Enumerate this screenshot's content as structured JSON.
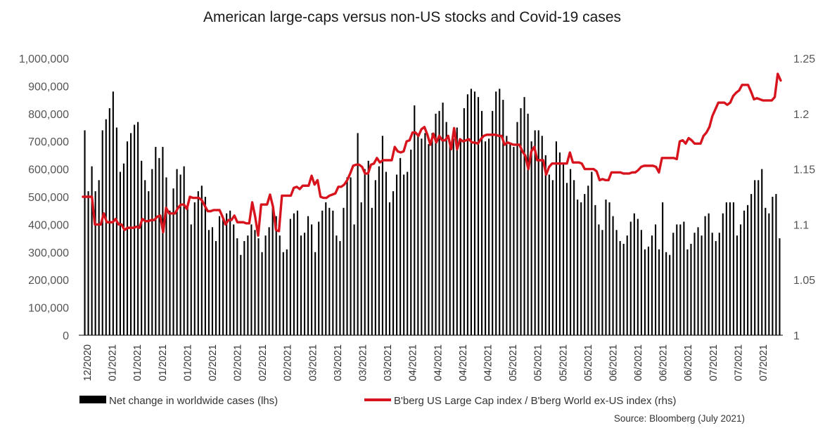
{
  "chart_data": {
    "type": "bar+line",
    "title": "American large-caps versus non-US stocks and Covid-19 cases",
    "source": "Source: Bloomberg (July 2021)",
    "y_left": {
      "min": 0,
      "max": 1000000,
      "ticks": [
        "0",
        "100,000",
        "200,000",
        "300,000",
        "400,000",
        "500,000",
        "600,000",
        "700,000",
        "800,000",
        "900,000",
        "1,000,000"
      ]
    },
    "y_right": {
      "min": 1.0,
      "max": 1.25,
      "ticks": [
        "1",
        "1.05",
        "1.1",
        "1.15",
        "1.2",
        "1.25"
      ]
    },
    "x_tick_labels": [
      "12/2020",
      "01/2021",
      "01/2021",
      "01/2021",
      "01/2021",
      "02/2021",
      "02/2021",
      "02/2021",
      "02/2021",
      "03/2021",
      "03/2021",
      "03/2021",
      "03/2021",
      "04/2021",
      "04/2021",
      "04/2021",
      "04/2021",
      "05/2021",
      "05/2021",
      "05/2021",
      "05/2021",
      "06/2021",
      "06/2021",
      "06/2021",
      "06/2021",
      "07/2021",
      "07/2021",
      "07/2021"
    ],
    "series": [
      {
        "name": "Net change in worldwide cases (lhs)",
        "type": "bar",
        "axis": "left",
        "color": "#000000",
        "values": [
          740000,
          520000,
          610000,
          520000,
          560000,
          740000,
          780000,
          820000,
          880000,
          750000,
          590000,
          620000,
          700000,
          730000,
          760000,
          770000,
          630000,
          560000,
          520000,
          600000,
          680000,
          640000,
          680000,
          570000,
          450000,
          530000,
          600000,
          580000,
          610000,
          460000,
          400000,
          480000,
          520000,
          540000,
          500000,
          380000,
          390000,
          340000,
          430000,
          420000,
          440000,
          450000,
          400000,
          350000,
          290000,
          340000,
          360000,
          400000,
          380000,
          350000,
          300000,
          360000,
          390000,
          460000,
          430000,
          360000,
          300000,
          310000,
          420000,
          440000,
          450000,
          360000,
          370000,
          430000,
          400000,
          300000,
          410000,
          450000,
          480000,
          460000,
          450000,
          360000,
          340000,
          460000,
          570000,
          570000,
          400000,
          730000,
          480000,
          600000,
          630000,
          460000,
          560000,
          610000,
          720000,
          590000,
          480000,
          520000,
          580000,
          640000,
          580000,
          590000,
          670000,
          830000,
          720000,
          710000,
          730000,
          690000,
          730000,
          800000,
          810000,
          840000,
          770000,
          690000,
          710000,
          750000,
          700000,
          820000,
          870000,
          890000,
          880000,
          860000,
          810000,
          700000,
          710000,
          810000,
          880000,
          890000,
          850000,
          720000,
          690000,
          680000,
          770000,
          820000,
          860000,
          800000,
          700000,
          740000,
          740000,
          720000,
          650000,
          580000,
          560000,
          700000,
          660000,
          620000,
          550000,
          600000,
          560000,
          490000,
          480000,
          510000,
          540000,
          590000,
          470000,
          400000,
          380000,
          490000,
          480000,
          430000,
          380000,
          340000,
          330000,
          360000,
          410000,
          440000,
          420000,
          380000,
          310000,
          320000,
          360000,
          400000,
          310000,
          480000,
          300000,
          290000,
          370000,
          400000,
          400000,
          410000,
          310000,
          330000,
          370000,
          390000,
          360000,
          430000,
          440000,
          370000,
          340000,
          370000,
          440000,
          480000,
          480000,
          480000,
          360000,
          400000,
          450000,
          470000,
          510000,
          560000,
          560000,
          600000,
          460000,
          440000,
          500000,
          510000,
          350000
        ]
      },
      {
        "name": "B'berg US Large Cap index / B'berg World ex-US index (rhs)",
        "type": "line",
        "axis": "right",
        "color": "#d7141d",
        "values": [
          1.125,
          1.125,
          1.125,
          1.125,
          1.1,
          1.1,
          1.1,
          1.11,
          1.102,
          1.102,
          1.102,
          1.105,
          1.1,
          1.1,
          1.095,
          1.097,
          1.097,
          1.097,
          1.098,
          1.097,
          1.105,
          1.103,
          1.103,
          1.104,
          1.104,
          1.107,
          1.108,
          1.093,
          1.115,
          1.11,
          1.11,
          1.11,
          1.115,
          1.118,
          1.118,
          1.114,
          1.125,
          1.124,
          1.124,
          1.124,
          1.122,
          1.117,
          1.112,
          1.112,
          1.113,
          1.113,
          1.113,
          1.107,
          1.1,
          1.104,
          1.104,
          1.108,
          1.102,
          1.102,
          1.102,
          1.101,
          1.101,
          1.12,
          1.107,
          1.09,
          1.118,
          1.118,
          1.118,
          1.127,
          1.116,
          1.095,
          1.094,
          1.126,
          1.126,
          1.126,
          1.126,
          1.133,
          1.134,
          1.132,
          1.135,
          1.135,
          1.135,
          1.144,
          1.136,
          1.14,
          1.125,
          1.124,
          1.124,
          1.126,
          1.127,
          1.128,
          1.134,
          1.134,
          1.136,
          1.14,
          1.146,
          1.153,
          1.154,
          1.154,
          1.152,
          1.146,
          1.146,
          1.154,
          1.155,
          1.16,
          1.156,
          1.158,
          1.158,
          1.158,
          1.158,
          1.17,
          1.166,
          1.165,
          1.166,
          1.175,
          1.176,
          1.183,
          1.183,
          1.18,
          1.186,
          1.188,
          1.181,
          1.172,
          1.182,
          1.174,
          1.18,
          1.176,
          1.176,
          1.18,
          1.168,
          1.187,
          1.168,
          1.177,
          1.175,
          1.176,
          1.177,
          1.174,
          1.174,
          1.173,
          1.177,
          1.18,
          1.181,
          1.181,
          1.181,
          1.181,
          1.18,
          1.18,
          1.172,
          1.174,
          1.173,
          1.172,
          1.172,
          1.172,
          1.166,
          1.162,
          1.15,
          1.166,
          1.17,
          1.158,
          1.158,
          1.158,
          1.145,
          1.152,
          1.155,
          1.155,
          1.155,
          1.155,
          1.155,
          1.155,
          1.165,
          1.156,
          1.156,
          1.156,
          1.155,
          1.15,
          1.15,
          1.15,
          1.15,
          1.148,
          1.14,
          1.141,
          1.14,
          1.14,
          1.147,
          1.147,
          1.147,
          1.147,
          1.146,
          1.146,
          1.146,
          1.147,
          1.147,
          1.149,
          1.152,
          1.153,
          1.153,
          1.153,
          1.153,
          1.152,
          1.147,
          1.16,
          1.16,
          1.16,
          1.16,
          1.16,
          1.159,
          1.175,
          1.176,
          1.173,
          1.178,
          1.176,
          1.173,
          1.173,
          1.173,
          1.18,
          1.183,
          1.188,
          1.198,
          1.204,
          1.21,
          1.21,
          1.21,
          1.208,
          1.21,
          1.216,
          1.219,
          1.221,
          1.226,
          1.226,
          1.226,
          1.22,
          1.213,
          1.214,
          1.213,
          1.212,
          1.212,
          1.212,
          1.212,
          1.215,
          1.236,
          1.23
        ]
      }
    ]
  }
}
